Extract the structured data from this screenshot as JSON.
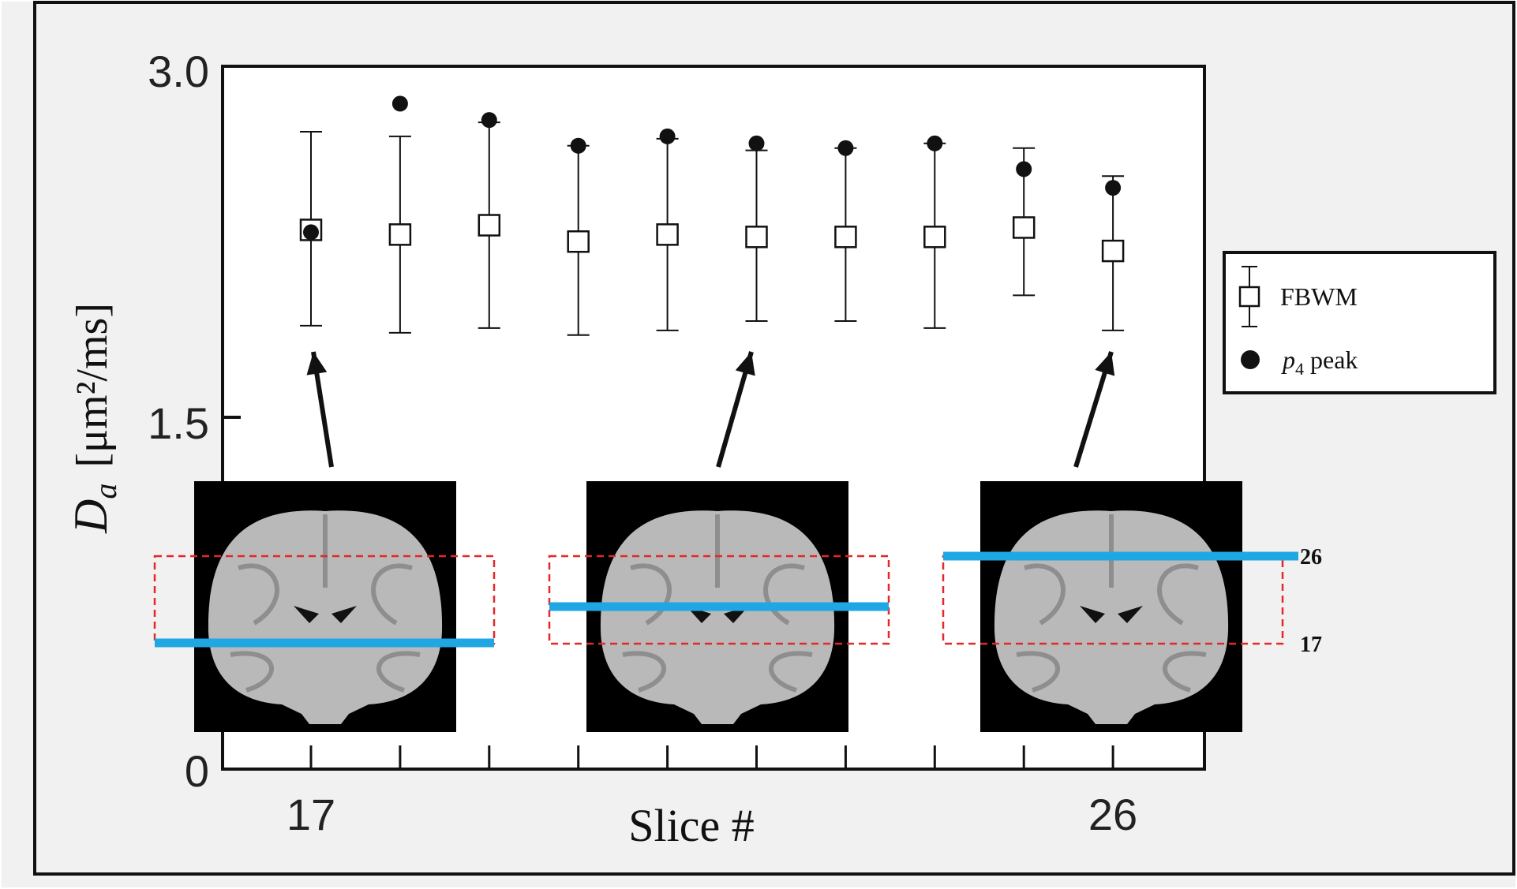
{
  "chart_data": {
    "type": "scatter",
    "xlabel": "Slice #",
    "ylabel_symbol": "D",
    "ylabel_subscript": "a",
    "ylabel_unit": "[μm²/ms]",
    "x": [
      17,
      18,
      19,
      20,
      21,
      22,
      23,
      24,
      25,
      26
    ],
    "x_tick_labels": [
      "17",
      "26"
    ],
    "y_ticks": [
      "3.0",
      "1.5",
      "0"
    ],
    "ylim": [
      0,
      3.0
    ],
    "xlim": [
      16,
      27
    ],
    "grid": false,
    "legend_position": "right",
    "series": [
      {
        "name": "FBWM",
        "marker": "open-square",
        "y": [
          2.3,
          2.28,
          2.32,
          2.25,
          2.28,
          2.27,
          2.27,
          2.27,
          2.31,
          2.21
        ],
        "err_low": [
          1.89,
          1.86,
          1.88,
          1.85,
          1.87,
          1.91,
          1.91,
          1.88,
          2.02,
          1.87
        ],
        "err_high": [
          2.72,
          2.7,
          2.76,
          2.66,
          2.69,
          2.64,
          2.65,
          2.67,
          2.65,
          2.53
        ]
      },
      {
        "name": "peak",
        "name_italic_prefix": "p",
        "name_subscript": "4",
        "marker": "filled-circle",
        "y": [
          2.29,
          2.84,
          2.77,
          2.66,
          2.7,
          2.67,
          2.65,
          2.67,
          2.56,
          2.48
        ]
      }
    ],
    "insets": [
      {
        "x_anchor": 17,
        "slice_label_top": "",
        "slice_label_bottom": ""
      },
      {
        "x_anchor": 22,
        "slice_label_top": "",
        "slice_label_bottom": ""
      },
      {
        "x_anchor": 26,
        "slice_label_top": "26",
        "slice_label_bottom": "17"
      }
    ],
    "colors": {
      "slice_line": "#1fa7e4",
      "roi_box": "#e3282a",
      "inset_background": "#000000",
      "panel_background": "#f1f1f1",
      "plot_background": "#ffffff"
    }
  }
}
